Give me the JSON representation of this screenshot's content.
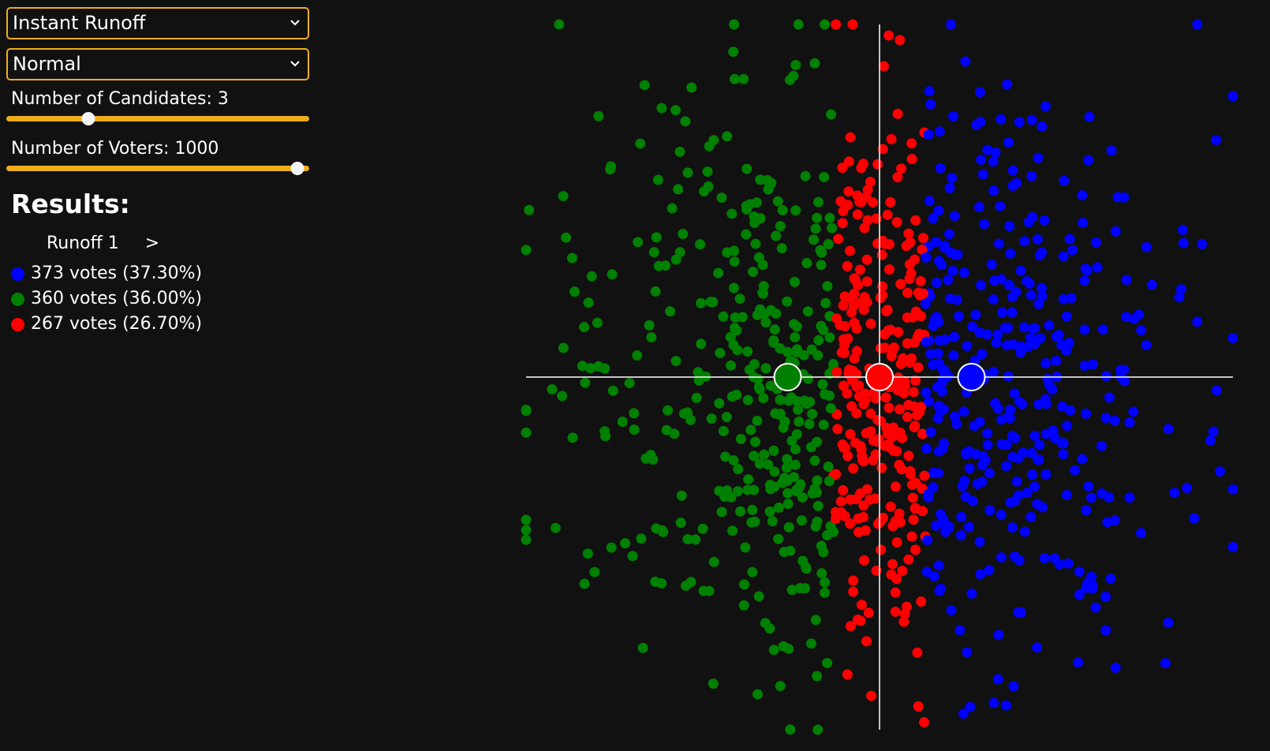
{
  "controls": {
    "method_select": "Instant Runoff",
    "distribution_select": "Normal",
    "candidates_label": "Number of Candidates: 3",
    "candidates_value": 3,
    "candidates_fraction": 0.27,
    "voters_label": "Number of Voters: 1000",
    "voters_value": 1000,
    "voters_fraction": 0.96
  },
  "results": {
    "heading": "Results:",
    "runoff_label": "Runoff 1",
    "next_label": ">",
    "entries": [
      {
        "text": "373 votes (37.30%)",
        "color": "#0000ff"
      },
      {
        "text": "360 votes (36.00%)",
        "color": "#008000"
      },
      {
        "text": "267 votes (26.70%)",
        "color": "#ff0000"
      }
    ]
  },
  "candidates": [
    {
      "name": "green",
      "color": "#008000",
      "x": -0.26
    },
    {
      "name": "red",
      "color": "#ff0000",
      "x": 0.0
    },
    {
      "name": "blue",
      "color": "#0000ff",
      "x": 0.26
    }
  ],
  "voter_count": 1000,
  "colors": {
    "accent": "#f0ad1a",
    "axis": "#ffffff",
    "background": "#111111"
  }
}
